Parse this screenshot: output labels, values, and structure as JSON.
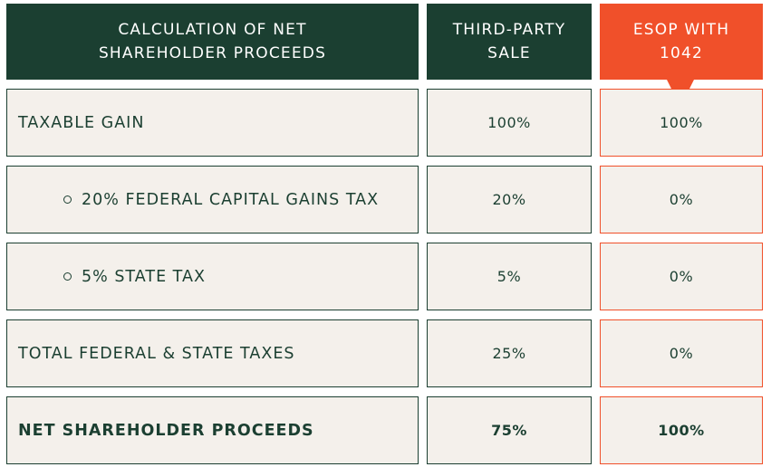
{
  "header": {
    "label_col": "CALCULATION OF NET SHAREHOLDER PROCEEDS",
    "col_third_party": "THIRD-PARTY SALE",
    "col_esop": "ESOP WITH 1042"
  },
  "colors": {
    "dark_green": "#1b3f31",
    "accent_orange": "#f0502a",
    "cell_background": "#f4f0eb"
  },
  "rows": [
    {
      "label": "TAXABLE GAIN",
      "third_party": "100%",
      "esop": "100%"
    },
    {
      "label": "20% FEDERAL CAPITAL GAINS TAX",
      "third_party": "20%",
      "esop": "0%"
    },
    {
      "label": "5% STATE TAX",
      "third_party": "5%",
      "esop": "0%"
    },
    {
      "label": "TOTAL FEDERAL & STATE TAXES",
      "third_party": "25%",
      "esop": "0%"
    },
    {
      "label": "NET SHAREHOLDER PROCEEDS",
      "third_party": "75%",
      "esop": "100%"
    }
  ]
}
